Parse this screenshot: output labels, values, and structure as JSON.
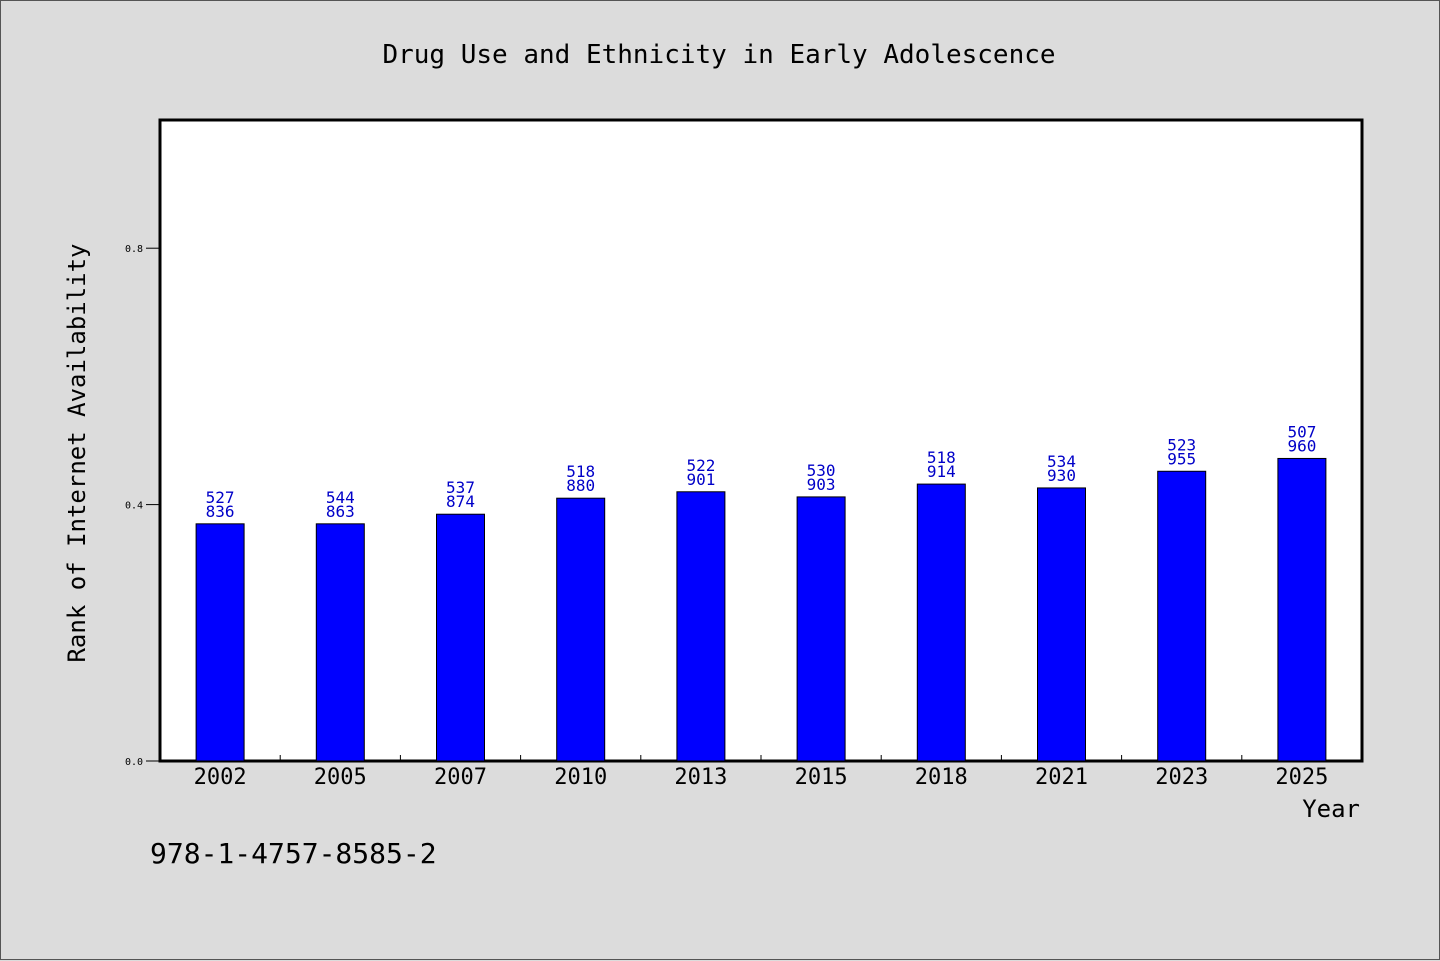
{
  "chart_data": {
    "type": "bar",
    "title": "Drug Use and Ethnicity in Early Adolescence",
    "xlabel": "Year",
    "ylabel": "Rank of Internet Availability",
    "categories": [
      "2002",
      "2005",
      "2007",
      "2010",
      "2013",
      "2015",
      "2018",
      "2021",
      "2023",
      "2025"
    ],
    "values": [
      0.37,
      0.37,
      0.385,
      0.41,
      0.42,
      0.412,
      0.432,
      0.426,
      0.452,
      0.472
    ],
    "top_labels": [
      "527",
      "544",
      "537",
      "518",
      "522",
      "530",
      "518",
      "534",
      "523",
      "507"
    ],
    "bottom_labels": [
      "836",
      "863",
      "874",
      "880",
      "901",
      "903",
      "914",
      "930",
      "955",
      "960"
    ],
    "ylim": [
      0,
      1.0
    ],
    "yticks": [
      {
        "value": 0.0,
        "label": "0.0"
      },
      {
        "value": 0.4,
        "label": "0.4"
      },
      {
        "value": 0.8,
        "label": "0.8"
      }
    ],
    "bar_color": "#0000ff",
    "label_color": "#0000c8",
    "grid": false,
    "legend": "none"
  },
  "footer_note": "978-1-4757-8585-2"
}
